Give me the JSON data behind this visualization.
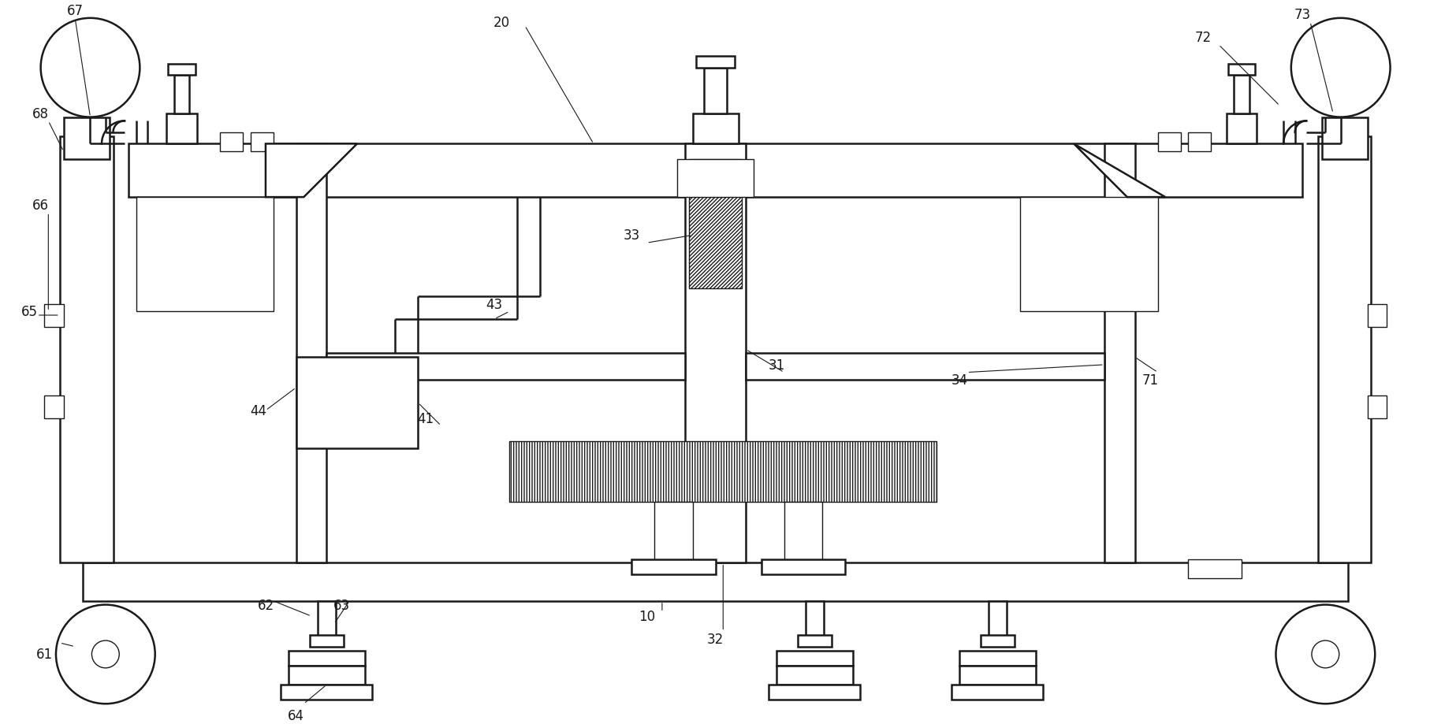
{
  "bg_color": "#ffffff",
  "lc": "#1a1a1a",
  "lw": 1.8,
  "lw_t": 1.0,
  "fig_w": 18.15,
  "fig_h": 9.2,
  "xlim": [
    0,
    182
  ],
  "ylim": [
    0,
    92
  ]
}
